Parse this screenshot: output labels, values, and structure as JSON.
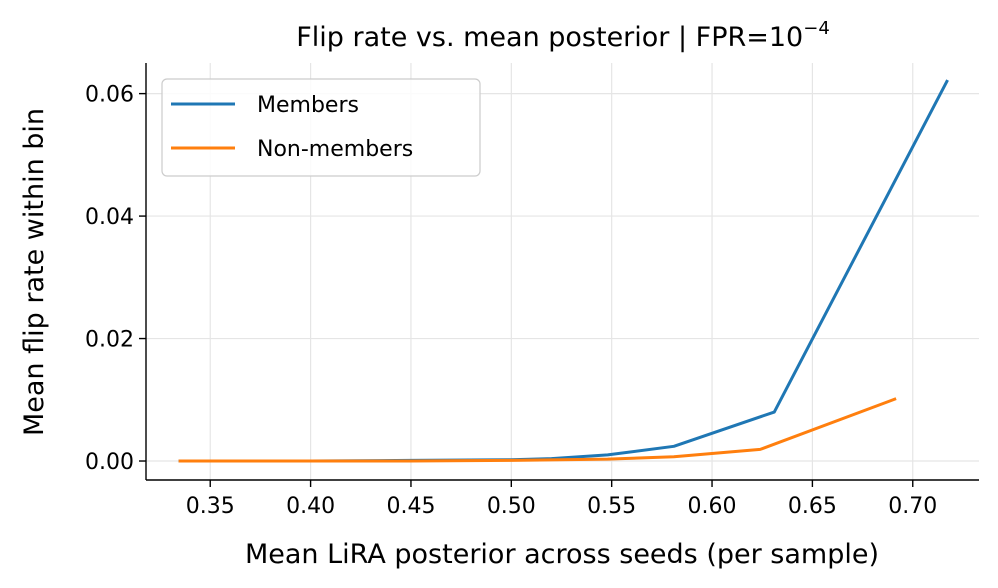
{
  "chart_data": {
    "type": "line",
    "title": {
      "main": "Flip rate vs. mean posterior  |  FPR=10",
      "exponent": "−4"
    },
    "xlabel": "Mean LiRA posterior across seeds (per sample)",
    "ylabel": "Mean flip rate within bin",
    "xlim": [
      0.318,
      0.733
    ],
    "ylim": [
      -0.0031,
      0.065
    ],
    "xticks": [
      0.35,
      0.4,
      0.45,
      0.5,
      0.55,
      0.6,
      0.65,
      0.7
    ],
    "xtick_labels": [
      "0.35",
      "0.40",
      "0.45",
      "0.50",
      "0.55",
      "0.60",
      "0.65",
      "0.70"
    ],
    "yticks": [
      0.0,
      0.02,
      0.04,
      0.06
    ],
    "ytick_labels": [
      "0.00",
      "0.02",
      "0.04",
      "0.06"
    ],
    "grid": true,
    "legend_position": "top-left",
    "series": [
      {
        "name": "Members",
        "color": "#1f77b4",
        "x": [
          0.335,
          0.4,
          0.45,
          0.5,
          0.52,
          0.548,
          0.581,
          0.631,
          0.717
        ],
        "y": [
          0.0,
          0.0,
          0.0001,
          0.0002,
          0.0004,
          0.001,
          0.0024,
          0.008,
          0.062
        ]
      },
      {
        "name": "Non-members",
        "color": "#ff7f0e",
        "x": [
          0.335,
          0.4,
          0.45,
          0.5,
          0.548,
          0.581,
          0.624,
          0.691
        ],
        "y": [
          0.0,
          0.0,
          0.0,
          0.0001,
          0.0003,
          0.0007,
          0.0019,
          0.0101
        ]
      }
    ]
  }
}
